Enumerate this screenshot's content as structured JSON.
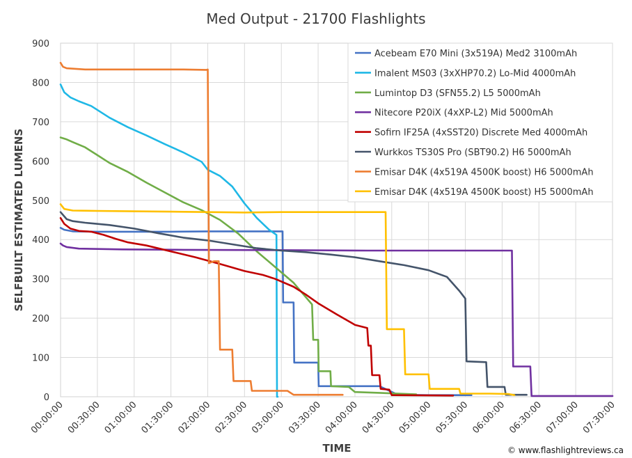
{
  "chart_data": {
    "type": "line",
    "title": "Med Output - 21700 Flashlights",
    "xlabel": "TIME",
    "ylabel": "SELFBUILT ESTIMATED LUMENS",
    "xlim": [
      0,
      450
    ],
    "ylim": [
      0,
      900
    ],
    "x_unit": "minutes",
    "y_ticks": [
      "0",
      "100",
      "200",
      "300",
      "400",
      "500",
      "600",
      "700",
      "800",
      "900"
    ],
    "x_ticks": [
      "00:00:00",
      "00:30:00",
      "01:00:00",
      "01:30:00",
      "02:00:00",
      "02:30:00",
      "03:00:00",
      "03:30:00",
      "04:00:00",
      "04:30:00",
      "05:00:00",
      "05:30:00",
      "06:00:00",
      "06:30:00",
      "07:00:00",
      "07:30:00"
    ],
    "grid": true,
    "legend_position": "top-right",
    "credit": "© www.flashlightreviews.ca",
    "series": [
      {
        "name": "Acebeam E70 Mini (3x519A) Med2 3100mAh",
        "color": "#4472c4",
        "points": [
          [
            0,
            430
          ],
          [
            3,
            425
          ],
          [
            10,
            421
          ],
          [
            30,
            420
          ],
          [
            60,
            420
          ],
          [
            90,
            420
          ],
          [
            120,
            421
          ],
          [
            150,
            421
          ],
          [
            170,
            421
          ],
          [
            181,
            421
          ],
          [
            181.5,
            240
          ],
          [
            190,
            240
          ],
          [
            190.5,
            87
          ],
          [
            210,
            87
          ],
          [
            210.5,
            27
          ],
          [
            260,
            27
          ],
          [
            275,
            5
          ],
          [
            300,
            4
          ],
          [
            335,
            4
          ]
        ]
      },
      {
        "name": "Imalent MS03 (3xXHP70.2) Lo-Mid 4000mAh",
        "color": "#1fb8e6",
        "points": [
          [
            0,
            795
          ],
          [
            3,
            775
          ],
          [
            8,
            762
          ],
          [
            15,
            752
          ],
          [
            25,
            740
          ],
          [
            40,
            710
          ],
          [
            55,
            686
          ],
          [
            70,
            665
          ],
          [
            85,
            643
          ],
          [
            100,
            622
          ],
          [
            115,
            598
          ],
          [
            120,
            578
          ],
          [
            130,
            562
          ],
          [
            140,
            535
          ],
          [
            150,
            492
          ],
          [
            160,
            455
          ],
          [
            170,
            425
          ],
          [
            176,
            412
          ],
          [
            176.5,
            0
          ],
          [
            177,
            0
          ]
        ]
      },
      {
        "name": "Lumintop D3 (SFN55.2) L5 5000mAh",
        "color": "#70ad47",
        "points": [
          [
            0,
            660
          ],
          [
            5,
            655
          ],
          [
            10,
            648
          ],
          [
            20,
            635
          ],
          [
            30,
            615
          ],
          [
            40,
            595
          ],
          [
            55,
            572
          ],
          [
            70,
            545
          ],
          [
            85,
            520
          ],
          [
            100,
            495
          ],
          [
            115,
            475
          ],
          [
            130,
            450
          ],
          [
            145,
            415
          ],
          [
            160,
            370
          ],
          [
            175,
            330
          ],
          [
            190,
            290
          ],
          [
            205,
            235
          ],
          [
            206,
            145
          ],
          [
            210,
            145
          ],
          [
            210.5,
            65
          ],
          [
            220,
            65
          ],
          [
            220.5,
            27
          ],
          [
            235,
            25
          ],
          [
            240,
            12
          ],
          [
            260,
            10
          ],
          [
            290,
            6
          ]
        ]
      },
      {
        "name": "Nitecore P20iX (4xXP-L2) Mid 5000mAh",
        "color": "#7030a0",
        "points": [
          [
            0,
            390
          ],
          [
            2,
            385
          ],
          [
            5,
            381
          ],
          [
            15,
            377
          ],
          [
            50,
            375
          ],
          [
            100,
            374
          ],
          [
            200,
            373
          ],
          [
            250,
            372
          ],
          [
            300,
            372
          ],
          [
            350,
            372
          ],
          [
            368,
            372
          ],
          [
            369,
            77
          ],
          [
            383,
            77
          ],
          [
            384,
            2
          ],
          [
            400,
            2
          ],
          [
            450,
            2
          ]
        ]
      },
      {
        "name": "Sofirn IF25A (4xSST20) Discrete Med 4000mAh",
        "color": "#c00000",
        "points": [
          [
            0,
            455
          ],
          [
            3,
            440
          ],
          [
            8,
            428
          ],
          [
            15,
            422
          ],
          [
            25,
            420
          ],
          [
            35,
            412
          ],
          [
            45,
            402
          ],
          [
            55,
            393
          ],
          [
            70,
            385
          ],
          [
            90,
            370
          ],
          [
            110,
            355
          ],
          [
            130,
            338
          ],
          [
            150,
            320
          ],
          [
            165,
            310
          ],
          [
            175,
            300
          ],
          [
            190,
            280
          ],
          [
            200,
            260
          ],
          [
            210,
            238
          ],
          [
            225,
            210
          ],
          [
            240,
            183
          ],
          [
            250,
            175
          ],
          [
            251,
            130
          ],
          [
            253,
            130
          ],
          [
            254,
            55
          ],
          [
            260,
            55
          ],
          [
            261,
            20
          ],
          [
            268,
            18
          ],
          [
            270,
            4
          ],
          [
            320,
            3
          ]
        ]
      },
      {
        "name": "Wurkkos TS30S Pro (SBT90.2) H6 5000mAh",
        "color": "#44546a",
        "points": [
          [
            0,
            470
          ],
          [
            5,
            452
          ],
          [
            10,
            447
          ],
          [
            20,
            443
          ],
          [
            40,
            437
          ],
          [
            60,
            428
          ],
          [
            80,
            416
          ],
          [
            100,
            405
          ],
          [
            120,
            398
          ],
          [
            140,
            388
          ],
          [
            160,
            378
          ],
          [
            180,
            372
          ],
          [
            200,
            368
          ],
          [
            220,
            362
          ],
          [
            240,
            355
          ],
          [
            260,
            345
          ],
          [
            280,
            335
          ],
          [
            300,
            322
          ],
          [
            315,
            305
          ],
          [
            325,
            270
          ],
          [
            330,
            250
          ],
          [
            331,
            90
          ],
          [
            347,
            88
          ],
          [
            348,
            25
          ],
          [
            362,
            25
          ],
          [
            363,
            5
          ],
          [
            380,
            5
          ]
        ]
      },
      {
        "name": "Emisar D4K (4x519A 4500K boost) H6 5000mAh",
        "color": "#ed7d31",
        "points": [
          [
            0,
            850
          ],
          [
            2,
            840
          ],
          [
            5,
            836
          ],
          [
            20,
            833
          ],
          [
            60,
            833
          ],
          [
            90,
            833
          ],
          [
            100,
            833
          ],
          [
            119,
            832
          ],
          [
            120,
            833
          ],
          [
            121,
            340
          ],
          [
            125,
            345
          ],
          [
            129,
            345
          ],
          [
            130,
            120
          ],
          [
            140,
            120
          ],
          [
            141,
            40
          ],
          [
            155,
            40
          ],
          [
            156,
            15
          ],
          [
            185,
            15
          ],
          [
            190,
            5
          ],
          [
            230,
            5
          ]
        ]
      },
      {
        "name": "Emisar D4K (4x519A 4500K boost) H5 5000mAh",
        "color": "#ffc000",
        "points": [
          [
            0,
            490
          ],
          [
            3,
            478
          ],
          [
            10,
            474
          ],
          [
            30,
            473
          ],
          [
            60,
            472
          ],
          [
            90,
            471
          ],
          [
            120,
            470
          ],
          [
            150,
            469
          ],
          [
            180,
            470
          ],
          [
            200,
            470
          ],
          [
            230,
            470
          ],
          [
            265,
            470
          ],
          [
            266,
            172
          ],
          [
            280,
            172
          ],
          [
            281,
            57
          ],
          [
            300,
            57
          ],
          [
            301,
            20
          ],
          [
            325,
            20
          ],
          [
            326,
            8
          ],
          [
            350,
            8
          ],
          [
            365,
            7
          ],
          [
            370,
            4
          ]
        ]
      }
    ]
  }
}
